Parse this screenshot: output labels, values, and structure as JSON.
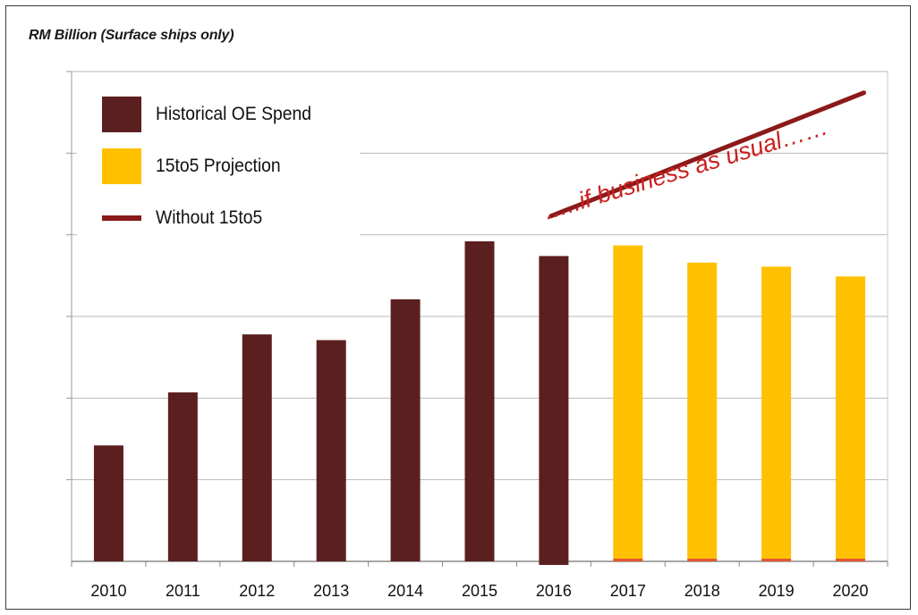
{
  "unit_label": "RM Billion  (Surface ships only)",
  "legend": {
    "items": [
      {
        "label": "Historical OE Spend",
        "color": "#5c1f1f",
        "kind": "bar"
      },
      {
        "label": "15to5 Projection",
        "color": "#ffc000",
        "kind": "bar"
      },
      {
        "label": "Without 15to5",
        "color": "#8b1a1a",
        "kind": "line"
      }
    ]
  },
  "annotation": {
    "text": "…..if business as usual……",
    "color": "#cc1f1f"
  },
  "chart_data": {
    "type": "bar",
    "title": "",
    "xlabel": "",
    "ylabel": "RM Billion  (Surface ships only)",
    "categories": [
      "2010",
      "2011",
      "2012",
      "2013",
      "2014",
      "2015",
      "2016",
      "2017",
      "2018",
      "2019",
      "2020"
    ],
    "ylim": [
      0,
      6
    ],
    "grid": true,
    "legend_position": "top-left",
    "series": [
      {
        "name": "Historical OE Spend",
        "color": "#5c1f1f",
        "values": [
          1.42,
          2.07,
          2.78,
          2.71,
          3.21,
          3.92,
          3.74,
          null,
          null,
          null,
          null
        ]
      },
      {
        "name": "15to5 Projection",
        "color": "#ffc000",
        "values": [
          null,
          null,
          null,
          null,
          null,
          null,
          null,
          3.87,
          3.66,
          3.61,
          3.49
        ]
      },
      {
        "name": "Without 15to5",
        "type": "line",
        "color": "#8b1a1a",
        "x": [
          "2016",
          "2020"
        ],
        "values": [
          4.23,
          5.74
        ]
      }
    ]
  }
}
